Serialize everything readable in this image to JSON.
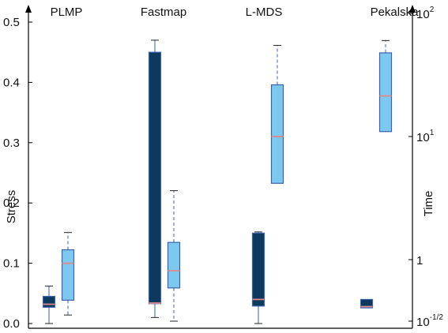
{
  "chart_data": {
    "type": "box",
    "categories": [
      "PLMP",
      "Fastmap",
      "L-MDS",
      "Pekalska"
    ],
    "left_axis": {
      "label": "Stress",
      "range": [
        0.0,
        0.52
      ],
      "ticks": [
        {
          "value": 0.0,
          "label": "0.0"
        },
        {
          "value": 0.1,
          "label": "0.1"
        },
        {
          "value": 0.2,
          "label": "0.2"
        },
        {
          "value": 0.3,
          "label": "0.3"
        },
        {
          "value": 0.4,
          "label": "0.4"
        },
        {
          "value": 0.5,
          "label": "0.5"
        }
      ]
    },
    "right_axis": {
      "label": "Time",
      "scale": "log",
      "range_exponent": [
        -0.5,
        2
      ],
      "ticks": [
        {
          "exponent": -0.5,
          "base": "10",
          "sup": "-1/2"
        },
        {
          "exponent": 0,
          "base": "1",
          "sup": ""
        },
        {
          "exponent": 1,
          "base": "10",
          "sup": "1"
        },
        {
          "exponent": 2,
          "base": "10",
          "sup": "2"
        }
      ]
    },
    "series": [
      {
        "name": "Stress",
        "axis": "left",
        "color": "#0d3a5c",
        "median_color": "#e08a8a",
        "boxes": [
          {
            "category": "PLMP",
            "min": 0.0,
            "q1": 0.027,
            "median": 0.032,
            "q3": 0.045,
            "max": 0.062
          },
          {
            "category": "Fastmap",
            "min": 0.01,
            "q1": 0.033,
            "median": 0.034,
            "q3": 0.45,
            "max": 0.47
          },
          {
            "category": "L-MDS",
            "min": 0.0,
            "q1": 0.029,
            "median": 0.04,
            "q3": 0.15,
            "max": 0.152
          },
          {
            "category": "Pekalska",
            "min": 0.026,
            "q1": 0.026,
            "median": 0.028,
            "q3": 0.04,
            "max": 0.04
          }
        ]
      },
      {
        "name": "Time",
        "axis": "right",
        "color": "#7cc8ee",
        "median_color": "#e08a8a",
        "boxes": [
          {
            "category": "PLMP",
            "min_exp": -0.45,
            "q1_exp": -0.33,
            "median_exp": -0.03,
            "q3_exp": 0.08,
            "max_exp": 0.22
          },
          {
            "category": "Fastmap",
            "min_exp": -0.5,
            "q1_exp": -0.23,
            "median_exp": -0.09,
            "q3_exp": 0.14,
            "max_exp": 0.56
          },
          {
            "category": "L-MDS",
            "min_exp": null,
            "q1_exp": 0.62,
            "median_exp": 1.0,
            "q3_exp": 1.42,
            "max_exp": 1.74
          },
          {
            "category": "Pekalska",
            "min_exp": null,
            "q1_exp": 1.04,
            "median_exp": 1.33,
            "q3_exp": 1.68,
            "max_exp": 1.78
          }
        ]
      }
    ]
  }
}
